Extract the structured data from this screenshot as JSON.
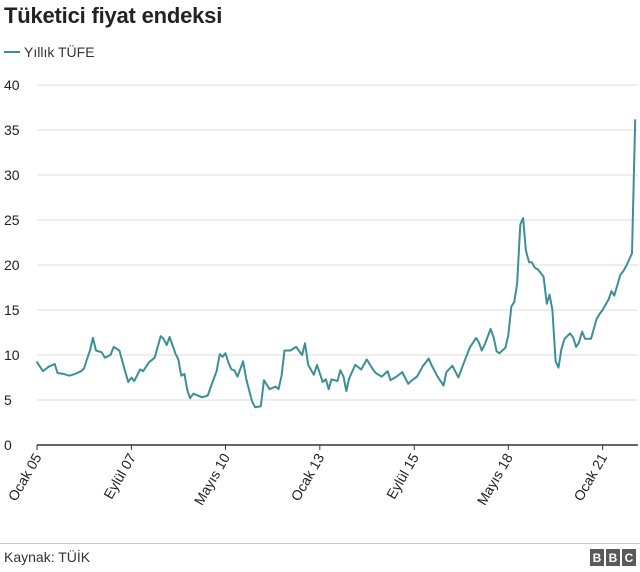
{
  "title": "Tüketici fiyat endeksi",
  "source_text": "Kaynak: TÜİK",
  "logo_letters": [
    "B",
    "B",
    "C"
  ],
  "colors": {
    "series": "#3d8f97",
    "grid": "#dddddd",
    "axis": "#333333",
    "text": "#222222"
  },
  "chart_data": {
    "type": "line",
    "title": "Tüketici fiyat endeksi",
    "xlabel": "",
    "ylabel": "",
    "ylim": [
      0,
      40
    ],
    "yticks": [
      0,
      5,
      10,
      15,
      20,
      25,
      30,
      35,
      40
    ],
    "xlim": [
      2005.0,
      2022.0
    ],
    "xticks": [
      {
        "label": "Ocak 05",
        "x": 2005.0
      },
      {
        "label": "Eylül 07",
        "x": 2007.67
      },
      {
        "label": "Mayıs 10",
        "x": 2010.33
      },
      {
        "label": "Ocak 13",
        "x": 2013.0
      },
      {
        "label": "Eylül 15",
        "x": 2015.67
      },
      {
        "label": "Mayıs 18",
        "x": 2018.33
      },
      {
        "label": "Ocak 21",
        "x": 2021.0
      }
    ],
    "grid": true,
    "legend_position": "top-left",
    "series": [
      {
        "name": "Yıllık TÜFE",
        "points": [
          [
            2005.0,
            9.2
          ],
          [
            2005.17,
            8.2
          ],
          [
            2005.33,
            8.7
          ],
          [
            2005.5,
            9.0
          ],
          [
            2005.58,
            8.0
          ],
          [
            2005.75,
            7.9
          ],
          [
            2005.92,
            7.7
          ],
          [
            2006.08,
            7.9
          ],
          [
            2006.25,
            8.2
          ],
          [
            2006.33,
            8.5
          ],
          [
            2006.42,
            9.6
          ],
          [
            2006.5,
            10.5
          ],
          [
            2006.58,
            11.9
          ],
          [
            2006.67,
            10.5
          ],
          [
            2006.83,
            10.3
          ],
          [
            2006.92,
            9.7
          ],
          [
            2007.08,
            10.0
          ],
          [
            2007.17,
            10.9
          ],
          [
            2007.33,
            10.5
          ],
          [
            2007.42,
            9.2
          ],
          [
            2007.58,
            7.0
          ],
          [
            2007.67,
            7.5
          ],
          [
            2007.75,
            7.1
          ],
          [
            2007.92,
            8.4
          ],
          [
            2008.0,
            8.2
          ],
          [
            2008.17,
            9.2
          ],
          [
            2008.33,
            9.7
          ],
          [
            2008.5,
            12.1
          ],
          [
            2008.58,
            11.8
          ],
          [
            2008.67,
            11.1
          ],
          [
            2008.75,
            12.0
          ],
          [
            2008.92,
            10.1
          ],
          [
            2009.0,
            9.5
          ],
          [
            2009.08,
            7.7
          ],
          [
            2009.17,
            7.9
          ],
          [
            2009.25,
            6.1
          ],
          [
            2009.33,
            5.2
          ],
          [
            2009.42,
            5.7
          ],
          [
            2009.67,
            5.3
          ],
          [
            2009.83,
            5.5
          ],
          [
            2009.92,
            6.5
          ],
          [
            2010.08,
            8.2
          ],
          [
            2010.17,
            10.1
          ],
          [
            2010.25,
            9.8
          ],
          [
            2010.33,
            10.2
          ],
          [
            2010.42,
            9.1
          ],
          [
            2010.5,
            8.4
          ],
          [
            2010.58,
            8.3
          ],
          [
            2010.67,
            7.6
          ],
          [
            2010.83,
            9.3
          ],
          [
            2010.92,
            7.3
          ],
          [
            2011.08,
            4.9
          ],
          [
            2011.17,
            4.2
          ],
          [
            2011.33,
            4.3
          ],
          [
            2011.42,
            7.2
          ],
          [
            2011.58,
            6.2
          ],
          [
            2011.75,
            6.5
          ],
          [
            2011.83,
            6.2
          ],
          [
            2011.92,
            7.7
          ],
          [
            2012.0,
            10.5
          ],
          [
            2012.17,
            10.5
          ],
          [
            2012.33,
            10.9
          ],
          [
            2012.5,
            10.0
          ],
          [
            2012.58,
            11.3
          ],
          [
            2012.67,
            8.9
          ],
          [
            2012.83,
            7.8
          ],
          [
            2012.92,
            8.9
          ],
          [
            2013.08,
            7.0
          ],
          [
            2013.17,
            7.3
          ],
          [
            2013.25,
            6.2
          ],
          [
            2013.33,
            7.3
          ],
          [
            2013.5,
            7.1
          ],
          [
            2013.58,
            8.3
          ],
          [
            2013.67,
            7.6
          ],
          [
            2013.75,
            6.0
          ],
          [
            2013.83,
            7.4
          ],
          [
            2014.0,
            8.9
          ],
          [
            2014.17,
            8.4
          ],
          [
            2014.33,
            9.5
          ],
          [
            2014.5,
            8.4
          ],
          [
            2014.58,
            8.0
          ],
          [
            2014.75,
            7.6
          ],
          [
            2014.92,
            8.2
          ],
          [
            2015.0,
            7.2
          ],
          [
            2015.17,
            7.6
          ],
          [
            2015.33,
            8.1
          ],
          [
            2015.5,
            6.8
          ],
          [
            2015.58,
            7.1
          ],
          [
            2015.75,
            7.6
          ],
          [
            2015.92,
            8.8
          ],
          [
            2016.08,
            9.6
          ],
          [
            2016.17,
            8.8
          ],
          [
            2016.33,
            7.6
          ],
          [
            2016.5,
            6.6
          ],
          [
            2016.58,
            8.1
          ],
          [
            2016.75,
            8.8
          ],
          [
            2016.92,
            7.5
          ],
          [
            2017.08,
            9.2
          ],
          [
            2017.25,
            10.9
          ],
          [
            2017.42,
            11.9
          ],
          [
            2017.5,
            11.4
          ],
          [
            2017.58,
            10.5
          ],
          [
            2017.67,
            11.2
          ],
          [
            2017.83,
            12.9
          ],
          [
            2017.92,
            11.9
          ],
          [
            2018.0,
            10.4
          ],
          [
            2018.08,
            10.2
          ],
          [
            2018.25,
            10.8
          ],
          [
            2018.33,
            12.2
          ],
          [
            2018.42,
            15.4
          ],
          [
            2018.5,
            15.9
          ],
          [
            2018.58,
            17.9
          ],
          [
            2018.67,
            24.5
          ],
          [
            2018.75,
            25.2
          ],
          [
            2018.83,
            21.6
          ],
          [
            2018.92,
            20.3
          ],
          [
            2019.0,
            20.3
          ],
          [
            2019.08,
            19.7
          ],
          [
            2019.17,
            19.5
          ],
          [
            2019.33,
            18.7
          ],
          [
            2019.42,
            15.7
          ],
          [
            2019.5,
            16.7
          ],
          [
            2019.58,
            15.0
          ],
          [
            2019.67,
            9.3
          ],
          [
            2019.75,
            8.6
          ],
          [
            2019.83,
            10.6
          ],
          [
            2019.92,
            11.8
          ],
          [
            2020.08,
            12.4
          ],
          [
            2020.17,
            11.9
          ],
          [
            2020.25,
            10.9
          ],
          [
            2020.33,
            11.4
          ],
          [
            2020.42,
            12.6
          ],
          [
            2020.5,
            11.8
          ],
          [
            2020.67,
            11.8
          ],
          [
            2020.83,
            14.0
          ],
          [
            2020.92,
            14.6
          ],
          [
            2021.0,
            15.0
          ],
          [
            2021.17,
            16.2
          ],
          [
            2021.25,
            17.1
          ],
          [
            2021.33,
            16.6
          ],
          [
            2021.5,
            18.9
          ],
          [
            2021.58,
            19.3
          ],
          [
            2021.67,
            19.9
          ],
          [
            2021.83,
            21.3
          ],
          [
            2021.92,
            36.1
          ]
        ]
      }
    ]
  }
}
